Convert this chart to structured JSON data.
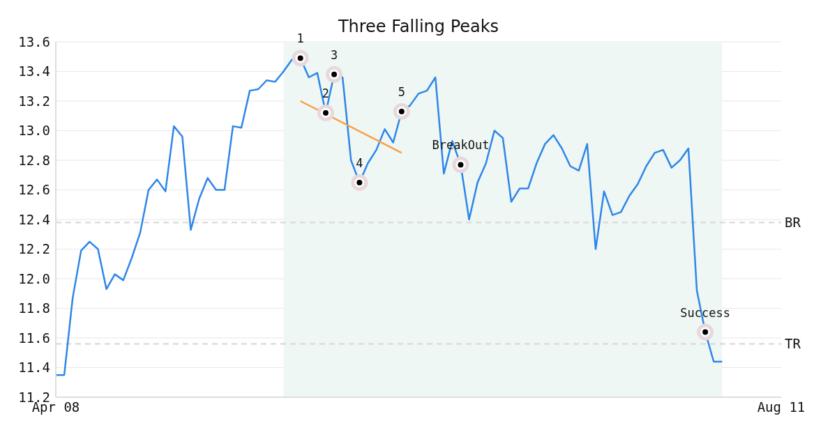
{
  "chart_data": {
    "type": "line",
    "title": "Three Falling Peaks",
    "categories": [
      "Apr 08",
      null,
      null,
      null,
      null,
      null,
      null,
      null,
      null,
      null,
      null,
      null,
      null,
      null,
      null,
      null,
      null,
      null,
      null,
      null,
      null,
      null,
      null,
      null,
      null,
      null,
      null,
      null,
      null,
      null,
      null,
      null,
      null,
      null,
      null,
      null,
      null,
      null,
      null,
      null,
      null,
      null,
      null,
      null,
      null,
      null,
      null,
      null,
      null,
      null,
      null,
      null,
      null,
      null,
      null,
      null,
      null,
      null,
      null,
      null,
      null,
      null,
      null,
      null,
      null,
      null,
      null,
      null,
      null,
      null,
      null,
      null,
      null,
      null,
      null,
      null,
      null,
      null,
      null,
      null,
      null,
      null,
      null,
      null,
      null,
      null,
      "Aug 11"
    ],
    "series": [
      {
        "color": "#2e86e8",
        "marker": "none",
        "values": [
          11.35,
          11.35,
          11.87,
          12.19,
          12.25,
          12.2,
          11.93,
          12.03,
          11.99,
          12.14,
          12.31,
          12.6,
          12.67,
          12.59,
          13.03,
          12.96,
          12.33,
          12.54,
          12.68,
          12.6,
          12.6,
          13.03,
          13.02,
          13.27,
          13.28,
          13.34,
          13.33,
          13.4,
          13.48,
          13.49,
          13.36,
          13.39,
          13.12,
          13.38,
          13.36,
          12.8,
          12.65,
          12.78,
          12.87,
          13.01,
          12.92,
          13.13,
          13.17,
          13.25,
          13.27,
          13.36,
          12.71,
          12.93,
          12.77,
          12.4,
          12.65,
          12.78,
          13.0,
          12.95,
          12.52,
          12.61,
          12.61,
          12.78,
          12.91,
          12.97,
          12.88,
          12.76,
          12.73,
          12.91,
          12.2,
          12.59,
          12.43,
          12.45,
          12.56,
          12.64,
          12.76,
          12.85,
          12.87,
          12.75,
          12.8,
          12.88,
          11.92,
          11.64,
          11.44,
          11.44,
          null,
          null,
          null,
          null,
          null,
          null,
          null
        ]
      },
      {
        "type": "line",
        "color": "#f5a04a",
        "marker": "none",
        "values": [
          null,
          null,
          null,
          null,
          null,
          null,
          null,
          null,
          null,
          null,
          null,
          null,
          null,
          null,
          null,
          null,
          null,
          null,
          null,
          null,
          null,
          null,
          null,
          null,
          null,
          null,
          null,
          null,
          null,
          13.2,
          null,
          null,
          null,
          null,
          null,
          null,
          null,
          null,
          null,
          null,
          null,
          12.85,
          null,
          null,
          null,
          null,
          null,
          null,
          null,
          null,
          null,
          null,
          null,
          null,
          null,
          null,
          null,
          null,
          null,
          null,
          null,
          null,
          null,
          null,
          null,
          null,
          null,
          null,
          null,
          null,
          null,
          null,
          null,
          null,
          null,
          null,
          null,
          null,
          null,
          null,
          null,
          null,
          null,
          null,
          null,
          null,
          null
        ]
      },
      {
        "type": "scatter",
        "color": "#000000",
        "marker": "circle",
        "values": [
          null,
          null,
          null,
          null,
          null,
          null,
          null,
          null,
          null,
          null,
          null,
          null,
          null,
          null,
          null,
          null,
          null,
          null,
          null,
          null,
          null,
          null,
          null,
          null,
          null,
          null,
          null,
          null,
          null,
          13.49,
          null,
          null,
          13.12,
          13.38,
          null,
          null,
          12.65,
          null,
          null,
          null,
          null,
          13.13,
          null,
          null,
          null,
          null,
          null,
          null,
          12.77,
          null,
          null,
          null,
          null,
          null,
          null,
          null,
          null,
          null,
          null,
          null,
          null,
          null,
          null,
          null,
          null,
          null,
          null,
          null,
          null,
          null,
          null,
          null,
          null,
          null,
          null,
          null,
          null,
          11.64,
          null,
          null,
          null,
          null,
          null,
          null,
          null,
          null,
          null
        ]
      }
    ],
    "ylim": [
      11.2,
      13.6
    ],
    "yticks": [
      11.2,
      11.4,
      11.6,
      11.8,
      {
        "value": 12,
        "label": "12.0"
      },
      12.2,
      12.4,
      12.6,
      12.8,
      {
        "value": 13,
        "label": "13.0"
      },
      13.2,
      13.4,
      13.6
    ],
    "grid": "y",
    "line_style": "solid",
    "ref_lines": [
      {
        "axis": "y",
        "value": 12.38,
        "label": "BR",
        "color": "#dddddd",
        "line_style": "dashed"
      },
      {
        "axis": "y",
        "value": 11.56,
        "label": "TR",
        "color": "#dddddd",
        "line_style": "dashed"
      }
    ],
    "annotations": [
      {
        "text": "1",
        "y": 13.49
      },
      {
        "text": "2",
        "y": 13.12
      },
      {
        "text": "3",
        "y": 13.38
      },
      {
        "text": "4",
        "y": 12.65
      },
      {
        "text": "5",
        "y": 13.13
      },
      {
        "text": "BreakOut",
        "y": 12.77
      },
      {
        "text": "Success",
        "y": 11.64
      }
    ]
  }
}
